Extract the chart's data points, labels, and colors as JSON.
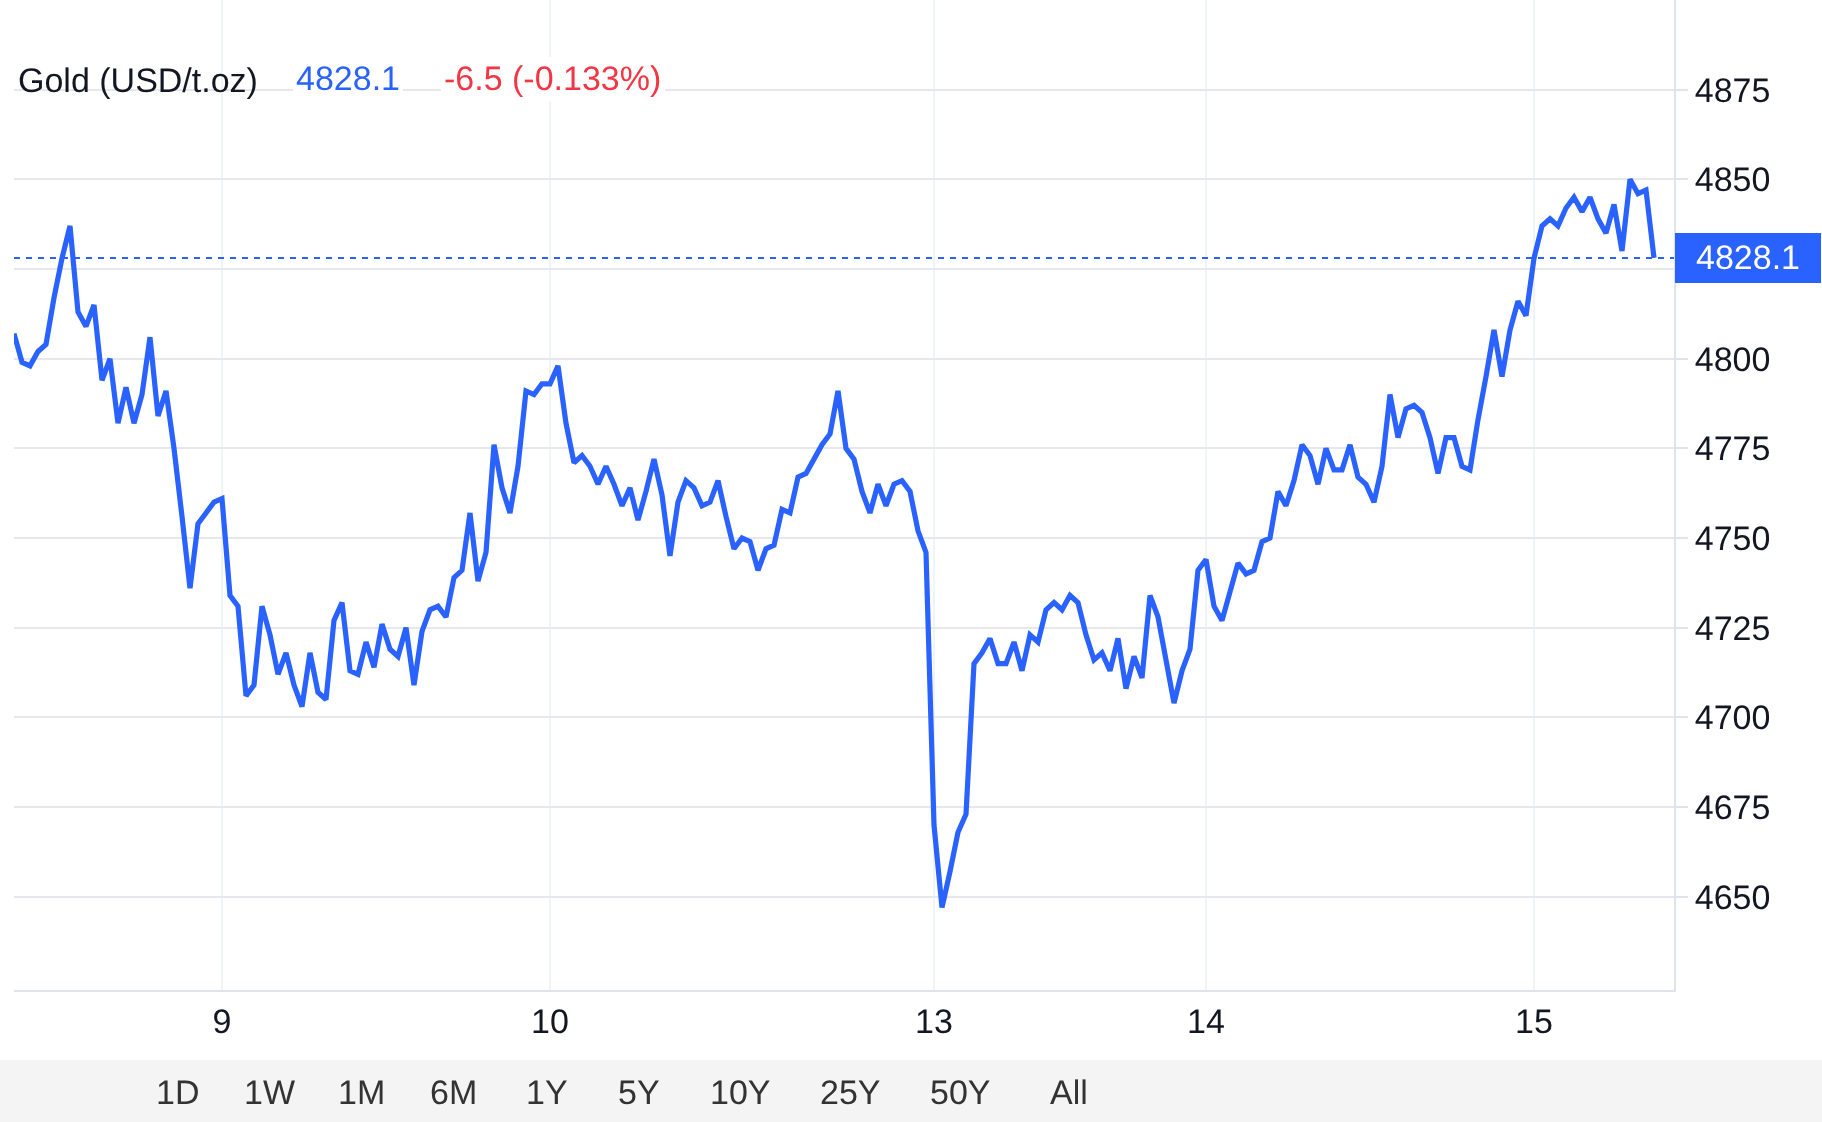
{
  "chart_data": {
    "type": "line",
    "title": "Gold (USD/t.oz)",
    "subtitle": "4828.1",
    "annotations": [
      "-6.5 (-0.133%)",
      "1D",
      "1W",
      "1M",
      "6M",
      "1Y",
      "5Y",
      "10Y",
      "25Y",
      "50Y",
      "All"
    ],
    "categories": [
      null,
      null,
      null,
      null,
      null,
      null,
      null,
      null,
      null,
      null,
      null,
      null,
      null,
      null,
      null,
      null,
      null,
      null,
      null,
      null,
      null,
      null,
      null,
      null,
      null,
      null,
      "9",
      null,
      null,
      null,
      null,
      null,
      null,
      null,
      null,
      null,
      null,
      null,
      null,
      null,
      null,
      null,
      null,
      null,
      null,
      null,
      null,
      null,
      null,
      null,
      null,
      null,
      null,
      null,
      null,
      null,
      null,
      null,
      null,
      null,
      null,
      null,
      null,
      null,
      null,
      null,
      null,
      "10",
      null,
      null,
      null,
      null,
      null,
      null,
      null,
      null,
      null,
      null,
      null,
      null,
      null,
      null,
      null,
      null,
      null,
      null,
      null,
      null,
      null,
      null,
      null,
      null,
      null,
      null,
      null,
      null,
      null,
      null,
      null,
      null,
      null,
      null,
      null,
      null,
      null,
      null,
      null,
      null,
      null,
      null,
      null,
      null,
      null,
      null,
      null,
      "13",
      null,
      null,
      null,
      null,
      null,
      null,
      null,
      null,
      null,
      null,
      null,
      null,
      null,
      null,
      null,
      null,
      null,
      null,
      null,
      null,
      null,
      null,
      null,
      null,
      null,
      null,
      null,
      null,
      null,
      null,
      null,
      null,
      null,
      "14",
      null,
      null,
      null,
      null,
      null,
      null,
      null,
      null,
      null,
      null,
      null,
      null,
      null,
      null,
      null,
      null,
      null,
      null,
      null,
      null,
      null,
      null,
      null,
      null,
      null,
      null,
      null,
      null,
      null,
      null,
      null,
      null,
      null,
      null,
      null,
      null,
      null,
      null,
      null,
      null,
      "15",
      null,
      null,
      null,
      null,
      null,
      null,
      null,
      null,
      null,
      null,
      null,
      null,
      null,
      null,
      null
    ],
    "series": [
      {
        "color": "#2962ff",
        "values": [
          4807,
          4799,
          4798,
          4802,
          4804,
          4817,
          4828,
          4837,
          4813,
          4809,
          4815,
          4794,
          4800,
          4782,
          4792,
          4782,
          4790,
          4806,
          4784,
          4791,
          4775,
          4756,
          4736,
          4754,
          4757,
          4760,
          4761,
          4734,
          4731,
          4706,
          4709,
          4731,
          4723,
          4712,
          4718,
          4709,
          4703,
          4718,
          4707,
          4705,
          4727,
          4732,
          4713,
          4712,
          4721,
          4714,
          4726,
          4719,
          4717,
          4725,
          4709,
          4724,
          4730,
          4731,
          4728,
          4739,
          4741,
          4757,
          4738,
          4746,
          4776,
          4764,
          4757,
          4770,
          4791,
          4790,
          4793,
          4793,
          4798,
          4782,
          4771,
          4773,
          4770,
          4765,
          4770,
          4765,
          4759,
          4764,
          4755,
          4763,
          4772,
          4762,
          4745,
          4760,
          4766,
          4764,
          4759,
          4760,
          4766,
          4756,
          4747,
          4750,
          4749,
          4741,
          4747,
          4748,
          4758,
          4757,
          4767,
          4768,
          4772,
          4776,
          4779,
          4791,
          4775,
          4772,
          4763,
          4757,
          4765,
          4759,
          4765,
          4766,
          4763,
          4752,
          4746,
          4670,
          4647,
          4657,
          4668,
          4673,
          4715,
          4718,
          4722,
          4715,
          4715,
          4721,
          4713,
          4723,
          4721,
          4730,
          4732,
          4730,
          4734,
          4732,
          4723,
          4716,
          4718,
          4713,
          4722,
          4708,
          4717,
          4711,
          4734,
          4728,
          4716,
          4704,
          4713,
          4719,
          4741,
          4744,
          4731,
          4727,
          4735,
          4743,
          4740,
          4741,
          4749,
          4750,
          4763,
          4759,
          4766,
          4776,
          4773,
          4765,
          4775,
          4769,
          4769,
          4776,
          4767,
          4765,
          4760,
          4770,
          4790,
          4778,
          4786,
          4787,
          4785,
          4778,
          4768,
          4778,
          4778,
          4770,
          4769,
          4783,
          4795,
          4808,
          4795,
          4808,
          4816,
          4812,
          4828,
          4837,
          4839,
          4837,
          4842,
          4845,
          4841,
          4845,
          4839,
          4835,
          4843,
          4830,
          4850,
          4846,
          4847,
          4828.1
        ]
      }
    ],
    "ylim": [
      4624,
      4900
    ],
    "yticks": [
      4650,
      4675,
      4700,
      4725,
      4750,
      4775,
      4800,
      {
        "value": 4825,
        "label": null
      },
      4850,
      4875
    ],
    "ref_lines": [
      {
        "axis": "y",
        "value": 4828.1,
        "label": "4828.1",
        "color": "#2962ff",
        "line_style": "dotted"
      }
    ],
    "grid": true,
    "line_style": "solid"
  }
}
